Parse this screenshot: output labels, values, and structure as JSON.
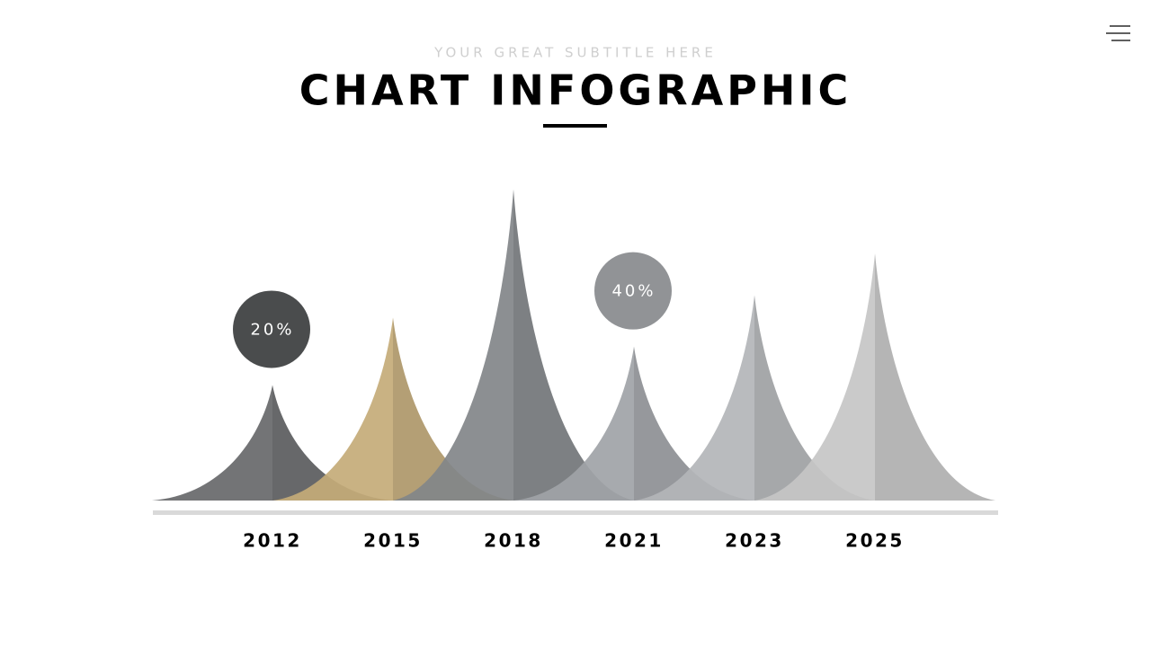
{
  "chart_data": {
    "type": "peak",
    "subtitle": "YOUR GREAT SUBTITLE HERE",
    "title": "CHART INFOGRAPHIC",
    "categories": [
      "2012",
      "2015",
      "2018",
      "2021",
      "2023",
      "2025"
    ],
    "values": [
      36,
      57,
      97,
      48,
      64,
      77
    ],
    "colors": [
      "#67686a",
      "#c4ab78",
      "#828589",
      "#a0a3a7",
      "#b3b5b9",
      "#c6c6c6"
    ],
    "ylim": [
      0,
      100
    ],
    "badges": [
      {
        "category": "2012",
        "value": 20,
        "label": "20%",
        "color": "#4a4c4d"
      },
      {
        "category": "2021",
        "value": 40,
        "label": "40%",
        "color": "#919396"
      }
    ]
  }
}
